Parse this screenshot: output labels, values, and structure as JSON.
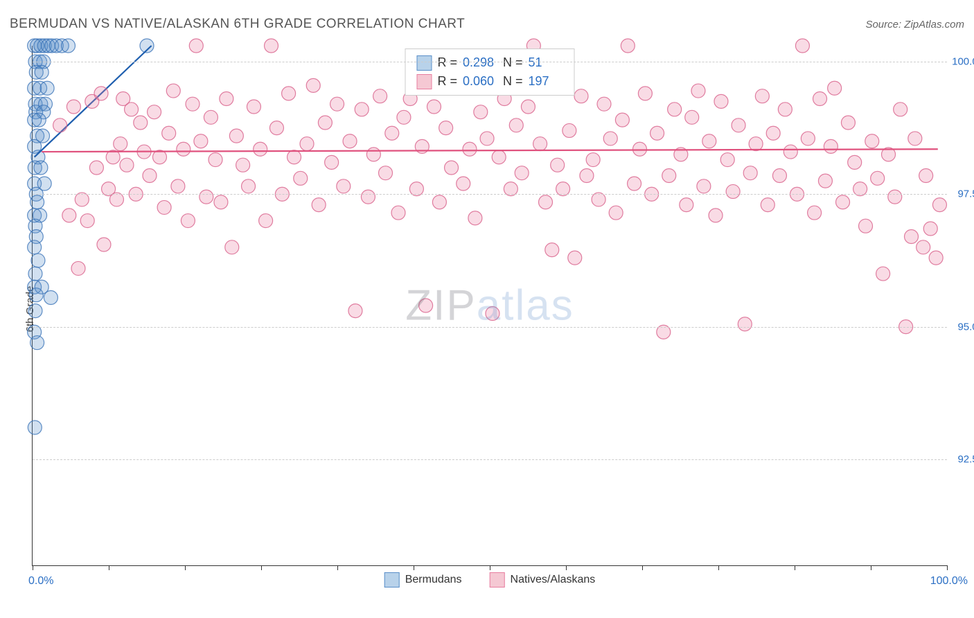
{
  "header": {
    "title": "BERMUDAN VS NATIVE/ALASKAN 6TH GRADE CORRELATION CHART",
    "source": "Source: ZipAtlas.com"
  },
  "axes": {
    "ylabel": "6th Grade",
    "xmin_label": "0.0%",
    "xmax_label": "100.0%",
    "xlim": [
      0,
      100
    ],
    "ylim": [
      90.5,
      100.3
    ],
    "yticks": [
      {
        "value": 92.5,
        "label": "92.5%"
      },
      {
        "value": 95.0,
        "label": "95.0%"
      },
      {
        "value": 97.5,
        "label": "97.5%"
      },
      {
        "value": 100.0,
        "label": "100.0%"
      }
    ],
    "xticks_minor": [
      0,
      8.33,
      16.67,
      25,
      33.33,
      41.67,
      50,
      58.33,
      66.67,
      75,
      83.33,
      91.67,
      100
    ],
    "grid_color": "#cccccc",
    "border_color": "#333333"
  },
  "legend": {
    "series1": {
      "r_label": "R =",
      "r_value": "0.298",
      "n_label": "N =",
      "n_value": "51",
      "swatch_fill": "#b8d2ea",
      "swatch_border": "#5a8fc9"
    },
    "series2": {
      "r_label": "R =",
      "r_value": "0.060",
      "n_label": "N =",
      "n_value": "197",
      "swatch_fill": "#f5c8d3",
      "swatch_border": "#e87ea0"
    },
    "bottom": {
      "series1_name": "Bermudans",
      "series2_name": "Natives/Alaskans"
    }
  },
  "watermark": {
    "part1": "ZIP",
    "part2": "atlas"
  },
  "chart": {
    "type": "scatter",
    "background": "#ffffff",
    "marker_radius": 10,
    "marker_opacity_fill": 0.28,
    "marker_opacity_stroke": 0.8,
    "series": [
      {
        "name": "Bermudans",
        "color_fill": "#5a8fc9",
        "color_stroke": "#3a73b8",
        "trend": {
          "x1": 0.2,
          "y1": 98.2,
          "x2": 13,
          "y2": 100.3,
          "color": "#1f5faf",
          "width": 2.2
        },
        "points": [
          [
            0.2,
            100.3
          ],
          [
            0.5,
            100.3
          ],
          [
            0.9,
            100.3
          ],
          [
            1.3,
            100.3
          ],
          [
            1.7,
            100.3
          ],
          [
            2.1,
            100.3
          ],
          [
            2.6,
            100.3
          ],
          [
            3.2,
            100.3
          ],
          [
            3.9,
            100.3
          ],
          [
            12.5,
            100.3
          ],
          [
            0.3,
            100.0
          ],
          [
            0.8,
            100.0
          ],
          [
            1.2,
            100.0
          ],
          [
            0.4,
            99.8
          ],
          [
            1.0,
            99.8
          ],
          [
            0.2,
            99.5
          ],
          [
            0.8,
            99.5
          ],
          [
            1.6,
            99.5
          ],
          [
            0.3,
            99.2
          ],
          [
            0.9,
            99.2
          ],
          [
            1.4,
            99.2
          ],
          [
            0.35,
            99.05
          ],
          [
            1.2,
            99.05
          ],
          [
            0.2,
            98.9
          ],
          [
            0.7,
            98.9
          ],
          [
            0.5,
            98.6
          ],
          [
            1.1,
            98.6
          ],
          [
            0.2,
            98.4
          ],
          [
            0.6,
            98.2
          ],
          [
            0.25,
            98.0
          ],
          [
            0.9,
            98.0
          ],
          [
            0.2,
            97.7
          ],
          [
            1.3,
            97.7
          ],
          [
            0.4,
            97.5
          ],
          [
            0.5,
            97.35
          ],
          [
            0.2,
            97.1
          ],
          [
            0.8,
            97.1
          ],
          [
            0.3,
            96.9
          ],
          [
            0.4,
            96.7
          ],
          [
            0.2,
            96.5
          ],
          [
            0.6,
            96.25
          ],
          [
            0.3,
            96.0
          ],
          [
            0.2,
            95.75
          ],
          [
            1.0,
            95.75
          ],
          [
            0.4,
            95.6
          ],
          [
            2.0,
            95.55
          ],
          [
            0.3,
            95.3
          ],
          [
            0.2,
            94.9
          ],
          [
            0.5,
            94.7
          ],
          [
            0.25,
            93.1
          ]
        ]
      },
      {
        "name": "Natives/Alaskans",
        "color_fill": "#e87ea0",
        "color_stroke": "#d85f8a",
        "trend": {
          "x1": 1,
          "y1": 98.3,
          "x2": 99,
          "y2": 98.35,
          "color": "#e0527e",
          "width": 2.2
        },
        "points": [
          [
            3,
            98.8
          ],
          [
            4,
            97.1
          ],
          [
            4.5,
            99.15
          ],
          [
            5,
            96.1
          ],
          [
            5.4,
            97.4
          ],
          [
            6,
            97.0
          ],
          [
            6.5,
            99.25
          ],
          [
            7,
            98.0
          ],
          [
            7.5,
            99.4
          ],
          [
            7.8,
            96.55
          ],
          [
            8.3,
            97.6
          ],
          [
            8.8,
            98.2
          ],
          [
            9.2,
            97.4
          ],
          [
            9.6,
            98.45
          ],
          [
            9.9,
            99.3
          ],
          [
            10.3,
            98.05
          ],
          [
            10.8,
            99.1
          ],
          [
            11.3,
            97.5
          ],
          [
            11.8,
            98.85
          ],
          [
            12.2,
            98.3
          ],
          [
            12.8,
            97.85
          ],
          [
            13.3,
            99.05
          ],
          [
            13.9,
            98.2
          ],
          [
            14.4,
            97.25
          ],
          [
            14.9,
            98.65
          ],
          [
            15.4,
            99.45
          ],
          [
            15.9,
            97.65
          ],
          [
            16.5,
            98.35
          ],
          [
            17.0,
            97.0
          ],
          [
            17.5,
            99.2
          ],
          [
            17.9,
            100.3
          ],
          [
            18.4,
            98.5
          ],
          [
            19,
            97.45
          ],
          [
            19.5,
            98.95
          ],
          [
            20,
            98.15
          ],
          [
            20.6,
            97.35
          ],
          [
            21.2,
            99.3
          ],
          [
            21.8,
            96.5
          ],
          [
            22.3,
            98.6
          ],
          [
            23,
            98.05
          ],
          [
            23.6,
            97.65
          ],
          [
            24.2,
            99.15
          ],
          [
            24.9,
            98.35
          ],
          [
            25.5,
            97.0
          ],
          [
            26.1,
            100.3
          ],
          [
            26.7,
            98.75
          ],
          [
            27.3,
            97.5
          ],
          [
            28,
            99.4
          ],
          [
            28.6,
            98.2
          ],
          [
            29.3,
            97.8
          ],
          [
            30,
            98.45
          ],
          [
            30.7,
            99.55
          ],
          [
            31.3,
            97.3
          ],
          [
            32,
            98.85
          ],
          [
            32.7,
            98.1
          ],
          [
            33.3,
            99.2
          ],
          [
            34,
            97.65
          ],
          [
            34.7,
            98.5
          ],
          [
            35.3,
            95.3
          ],
          [
            36,
            99.1
          ],
          [
            36.7,
            97.45
          ],
          [
            37.3,
            98.25
          ],
          [
            38,
            99.35
          ],
          [
            38.6,
            97.9
          ],
          [
            39.3,
            98.65
          ],
          [
            40,
            97.15
          ],
          [
            40.6,
            98.95
          ],
          [
            41.3,
            99.3
          ],
          [
            42,
            97.6
          ],
          [
            42.6,
            98.4
          ],
          [
            43,
            95.4
          ],
          [
            43.9,
            99.15
          ],
          [
            44.5,
            97.35
          ],
          [
            45.2,
            98.75
          ],
          [
            45.8,
            98.0
          ],
          [
            46.5,
            99.5
          ],
          [
            47.1,
            97.7
          ],
          [
            47.8,
            98.35
          ],
          [
            48.4,
            97.05
          ],
          [
            49,
            99.05
          ],
          [
            49.7,
            98.55
          ],
          [
            50.3,
            95.25
          ],
          [
            51,
            98.2
          ],
          [
            51.6,
            99.3
          ],
          [
            52.3,
            97.6
          ],
          [
            52.9,
            98.8
          ],
          [
            53.5,
            97.9
          ],
          [
            54.2,
            99.15
          ],
          [
            54.8,
            100.3
          ],
          [
            55.5,
            98.45
          ],
          [
            56.1,
            97.35
          ],
          [
            56.8,
            96.45
          ],
          [
            57.4,
            98.05
          ],
          [
            58,
            97.6
          ],
          [
            58.7,
            98.7
          ],
          [
            59.3,
            96.3
          ],
          [
            60,
            99.35
          ],
          [
            60.6,
            97.85
          ],
          [
            61.3,
            98.15
          ],
          [
            61.9,
            97.4
          ],
          [
            62.5,
            99.2
          ],
          [
            63.2,
            98.55
          ],
          [
            63.8,
            97.15
          ],
          [
            64.5,
            98.9
          ],
          [
            65.1,
            100.3
          ],
          [
            65.8,
            97.7
          ],
          [
            66.4,
            98.35
          ],
          [
            67,
            99.4
          ],
          [
            67.7,
            97.5
          ],
          [
            68.3,
            98.65
          ],
          [
            69,
            94.9
          ],
          [
            69.6,
            97.85
          ],
          [
            70.2,
            99.1
          ],
          [
            70.9,
            98.25
          ],
          [
            71.5,
            97.3
          ],
          [
            72.1,
            98.95
          ],
          [
            72.8,
            99.45
          ],
          [
            73.4,
            97.65
          ],
          [
            74,
            98.5
          ],
          [
            74.7,
            97.1
          ],
          [
            75.3,
            99.25
          ],
          [
            76,
            98.15
          ],
          [
            76.6,
            97.55
          ],
          [
            77.2,
            98.8
          ],
          [
            77.9,
            95.05
          ],
          [
            78.5,
            97.9
          ],
          [
            79.1,
            98.45
          ],
          [
            79.8,
            99.35
          ],
          [
            80.4,
            97.3
          ],
          [
            81,
            98.65
          ],
          [
            81.7,
            97.85
          ],
          [
            82.3,
            99.1
          ],
          [
            82.9,
            98.3
          ],
          [
            83.6,
            97.5
          ],
          [
            84.2,
            100.3
          ],
          [
            84.8,
            98.55
          ],
          [
            85.5,
            97.15
          ],
          [
            86.1,
            99.3
          ],
          [
            86.7,
            97.75
          ],
          [
            87.3,
            98.4
          ],
          [
            87.7,
            99.5
          ],
          [
            88.6,
            97.35
          ],
          [
            89.2,
            98.85
          ],
          [
            89.9,
            98.1
          ],
          [
            90.5,
            97.6
          ],
          [
            91.1,
            96.9
          ],
          [
            91.8,
            98.5
          ],
          [
            92.4,
            97.8
          ],
          [
            93,
            96.0
          ],
          [
            93.6,
            98.25
          ],
          [
            94.3,
            97.45
          ],
          [
            94.9,
            99.1
          ],
          [
            95.5,
            95.0
          ],
          [
            96.1,
            96.7
          ],
          [
            96.5,
            98.55
          ],
          [
            97.4,
            96.5
          ],
          [
            97.7,
            97.85
          ],
          [
            98.2,
            96.85
          ],
          [
            98.8,
            96.3
          ],
          [
            99.2,
            97.3
          ]
        ]
      }
    ]
  }
}
